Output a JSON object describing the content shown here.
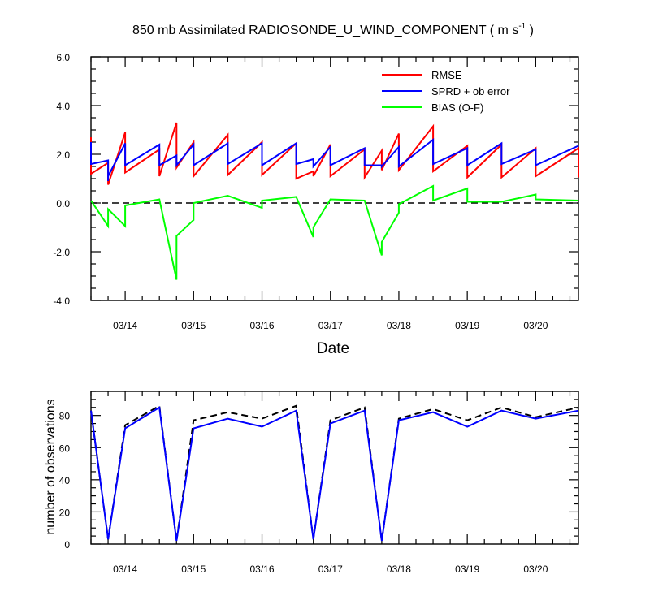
{
  "chart_data": [
    {
      "type": "line",
      "title": "850 mb Assimilated RADIOSONDE_U_WIND_COMPONENT ( m s",
      "title_sup": "-1",
      "title_end": " )",
      "xlabel": "Date",
      "ylabel": "",
      "ylim": [
        -4.0,
        6.0
      ],
      "xlim": [
        0.0,
        28.5
      ],
      "yticks": [
        -4.0,
        -2.0,
        0.0,
        2.0,
        4.0,
        6.0
      ],
      "ytick_labels": [
        "-4.0",
        "-2.0",
        "0.0",
        "2.0",
        "4.0",
        "6.0"
      ],
      "xticks": [
        2,
        6,
        10,
        14,
        18,
        22,
        26
      ],
      "xtick_labels": [
        "03/14",
        "03/15",
        "03/16",
        "03/17",
        "03/18",
        "03/19",
        "03/20"
      ],
      "grid": false,
      "legend_position": "top-right",
      "reference_line": {
        "y": 0.0,
        "style": "dashed",
        "color": "#000000"
      },
      "series": [
        {
          "name": "RMSE",
          "color": "#ff0000",
          "x": [
            0,
            0,
            1,
            1,
            1,
            2,
            2,
            4,
            4,
            5,
            5,
            6,
            6,
            8,
            8,
            10,
            10,
            12,
            12,
            13,
            13,
            14,
            14,
            16,
            16,
            17,
            17,
            18,
            18,
            20,
            20,
            22,
            22,
            24,
            24,
            26,
            26,
            28.5,
            28.5
          ],
          "y": [
            2.7,
            1.2,
            1.65,
            0.75,
            0.75,
            2.9,
            1.25,
            2.2,
            1.1,
            3.3,
            1.45,
            2.5,
            1.1,
            2.8,
            1.15,
            2.5,
            1.15,
            2.45,
            1.0,
            1.3,
            1.1,
            2.4,
            1.1,
            2.2,
            1.05,
            2.15,
            1.35,
            2.85,
            1.35,
            3.15,
            1.3,
            2.35,
            1.05,
            2.4,
            1.05,
            2.25,
            1.1,
            2.25,
            1.05
          ]
        },
        {
          "name": "SPRD + ob error",
          "color": "#0000ff",
          "x": [
            0,
            0,
            1,
            1,
            1,
            2,
            2,
            4,
            4,
            5,
            5,
            6,
            6,
            8,
            8,
            10,
            10,
            12,
            12,
            13,
            13,
            14,
            14,
            16,
            16,
            17,
            17,
            18,
            18,
            20,
            20,
            22,
            22,
            24,
            24,
            26,
            26,
            28.5
          ],
          "y": [
            2.5,
            1.6,
            1.75,
            0.9,
            1.1,
            2.45,
            1.55,
            2.4,
            1.55,
            1.95,
            1.55,
            2.4,
            1.55,
            2.45,
            1.6,
            2.45,
            1.55,
            2.45,
            1.6,
            1.8,
            1.5,
            2.3,
            1.55,
            2.25,
            1.55,
            1.55,
            1.5,
            2.3,
            1.5,
            2.6,
            1.6,
            2.25,
            1.55,
            2.45,
            1.6,
            2.2,
            1.55,
            2.35
          ]
        },
        {
          "name": "BIAS (O-F)",
          "color": "#00ff00",
          "x": [
            0,
            1,
            1,
            2,
            2,
            4,
            5,
            5,
            6,
            6,
            8,
            10,
            10,
            12,
            13,
            13,
            14,
            16,
            17,
            17,
            18,
            18,
            20,
            20,
            22,
            22,
            24,
            26,
            26,
            28.5
          ],
          "y": [
            0.1,
            -0.95,
            -0.25,
            -0.95,
            -0.1,
            0.15,
            -3.15,
            -1.35,
            -0.7,
            0.0,
            0.3,
            -0.2,
            0.1,
            0.25,
            -1.4,
            -1.0,
            0.15,
            0.1,
            -2.15,
            -1.6,
            -0.4,
            -0.05,
            0.7,
            0.1,
            0.6,
            0.05,
            0.05,
            0.35,
            0.15,
            0.1
          ]
        }
      ]
    },
    {
      "type": "line",
      "title": "",
      "xlabel": "",
      "ylabel": "number of observations",
      "ylim": [
        0,
        95
      ],
      "xlim": [
        0.0,
        28.5
      ],
      "yticks": [
        0,
        20,
        40,
        60,
        80
      ],
      "ytick_labels": [
        "0",
        "20",
        "40",
        "60",
        "80"
      ],
      "xticks": [
        2,
        6,
        10,
        14,
        18,
        22,
        26
      ],
      "xtick_labels": [
        "03/14",
        "03/15",
        "03/16",
        "03/17",
        "03/18",
        "03/19",
        "03/20"
      ],
      "grid": false,
      "series": [
        {
          "color": "#000000",
          "style": "dashed",
          "x": [
            0,
            1,
            2,
            4,
            5,
            6,
            8,
            10,
            12,
            13,
            14,
            16,
            17,
            18,
            20,
            22,
            24,
            26,
            28.5
          ],
          "y": [
            83,
            3,
            74,
            86,
            2,
            77,
            82,
            78,
            86,
            3,
            77,
            85,
            2,
            78,
            84,
            77,
            85,
            79,
            85
          ]
        },
        {
          "color": "#0000ff",
          "style": "solid",
          "x": [
            0,
            1,
            2,
            4,
            5,
            6,
            8,
            10,
            12,
            13,
            14,
            16,
            17,
            18,
            20,
            22,
            24,
            26,
            28.5
          ],
          "y": [
            83,
            3,
            72,
            85,
            2,
            72,
            78,
            73,
            83,
            3,
            75,
            83,
            2,
            77,
            82,
            73,
            83,
            78,
            83
          ]
        }
      ]
    }
  ]
}
